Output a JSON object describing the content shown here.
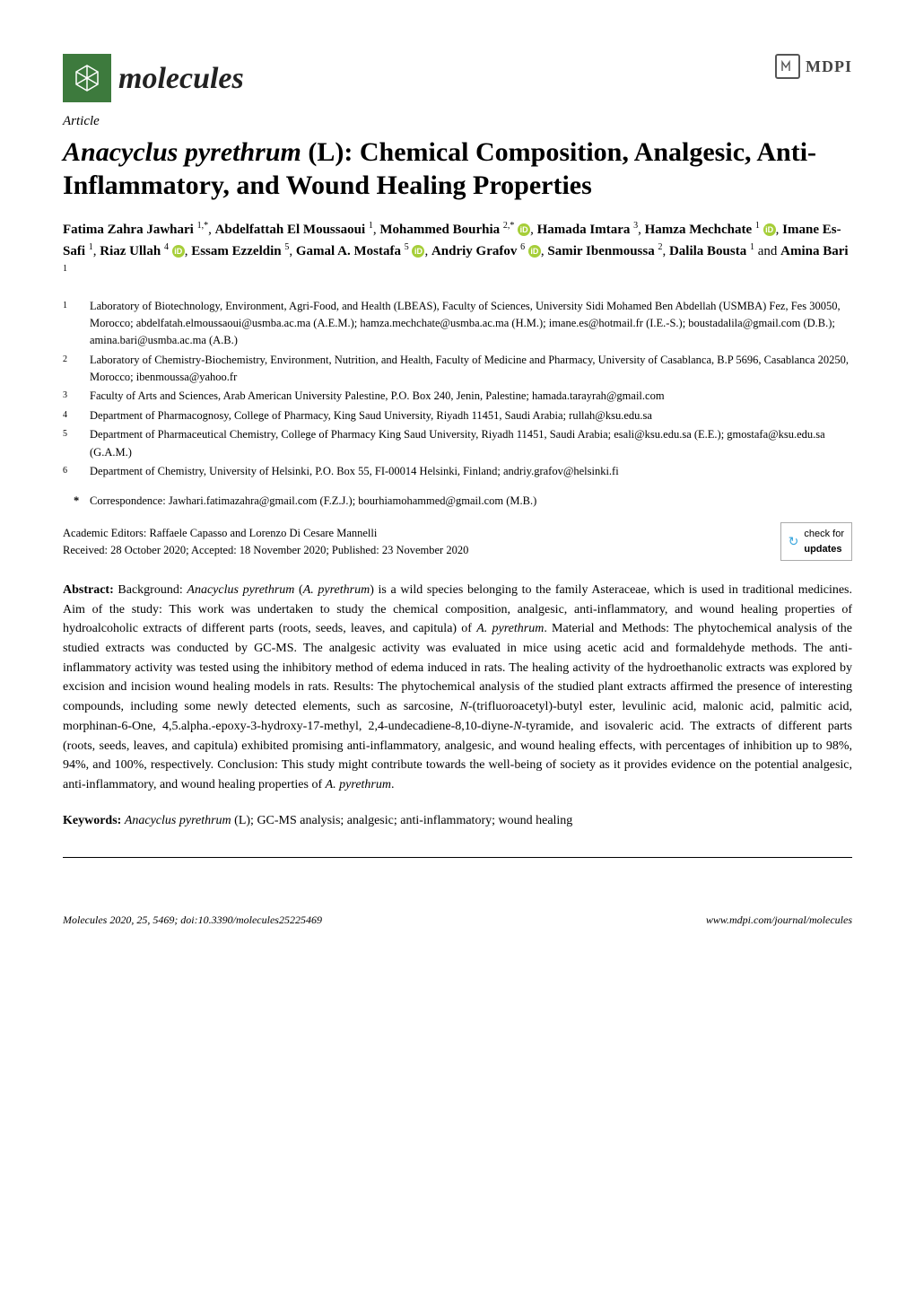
{
  "journal": {
    "name": "molecules",
    "publisher": "MDPI"
  },
  "article_type": "Article",
  "title": {
    "species": "Anacyclus pyrethrum",
    "suffix": " (L): Chemical Composition, Analgesic, Anti-Inflammatory, and Wound Healing Properties"
  },
  "authors_line": "Fatima Zahra Jawhari 1,*, Abdelfattah El Moussaoui 1, Mohammed Bourhia 2,* , Hamada Imtara 3, Hamza Mechchate 1 , Imane Es-Safi 1, Riaz Ullah 4 , Essam Ezzeldin 5, Gamal A. Mostafa 5 , Andriy Grafov 6 , Samir Ibenmoussa 2, Dalila Bousta 1 and Amina Bari 1",
  "authors": [
    {
      "name": "Fatima Zahra Jawhari",
      "sup": "1,*",
      "orcid": false
    },
    {
      "name": "Abdelfattah El Moussaoui",
      "sup": "1",
      "orcid": false
    },
    {
      "name": "Mohammed Bourhia",
      "sup": "2,*",
      "orcid": true
    },
    {
      "name": "Hamada Imtara",
      "sup": "3",
      "orcid": false
    },
    {
      "name": "Hamza Mechchate",
      "sup": "1",
      "orcid": true
    },
    {
      "name": "Imane Es-Safi",
      "sup": "1",
      "orcid": false
    },
    {
      "name": "Riaz Ullah",
      "sup": "4",
      "orcid": true
    },
    {
      "name": "Essam Ezzeldin",
      "sup": "5",
      "orcid": false
    },
    {
      "name": "Gamal A. Mostafa",
      "sup": "5",
      "orcid": true
    },
    {
      "name": "Andriy Grafov",
      "sup": "6",
      "orcid": true
    },
    {
      "name": "Samir Ibenmoussa",
      "sup": "2",
      "orcid": false
    },
    {
      "name": "Dalila Bousta",
      "sup": "1",
      "orcid": false
    },
    {
      "name": "Amina Bari",
      "sup": "1",
      "orcid": false
    }
  ],
  "affiliations": [
    {
      "num": "1",
      "text": "Laboratory of Biotechnology, Environment, Agri-Food, and Health (LBEAS), Faculty of Sciences, University Sidi Mohamed Ben Abdellah (USMBA) Fez, Fes 30050, Morocco; abdelfatah.elmoussaoui@usmba.ac.ma (A.E.M.); hamza.mechchate@usmba.ac.ma (H.M.); imane.es@hotmail.fr (I.E.-S.); boustadalila@gmail.com (D.B.); amina.bari@usmba.ac.ma (A.B.)"
    },
    {
      "num": "2",
      "text": "Laboratory of Chemistry-Biochemistry, Environment, Nutrition, and Health, Faculty of Medicine and Pharmacy, University of Casablanca, B.P 5696, Casablanca 20250, Morocco; ibenmoussa@yahoo.fr"
    },
    {
      "num": "3",
      "text": "Faculty of Arts and Sciences, Arab American University Palestine, P.O. Box 240, Jenin, Palestine; hamada.tarayrah@gmail.com"
    },
    {
      "num": "4",
      "text": "Department of Pharmacognosy, College of Pharmacy, King Saud University, Riyadh 11451, Saudi Arabia; rullah@ksu.edu.sa"
    },
    {
      "num": "5",
      "text": "Department of Pharmaceutical Chemistry, College of Pharmacy King Saud University, Riyadh 11451, Saudi Arabia; esali@ksu.edu.sa (E.E.); gmostafa@ksu.edu.sa (G.A.M.)"
    },
    {
      "num": "6",
      "text": "Department of Chemistry, University of Helsinki, P.O. Box 55, FI-00014 Helsinki, Finland; andriy.grafov@helsinki.fi"
    }
  ],
  "correspondence": "Correspondence: Jawhari.fatimazahra@gmail.com (F.Z.J.); bourhiamohammed@gmail.com (M.B.)",
  "editors": "Academic Editors: Raffaele Capasso and Lorenzo Di Cesare Mannelli",
  "dates": "Received: 28 October 2020; Accepted: 18 November 2020; Published: 23 November 2020",
  "updates_badge": "check for updates",
  "abstract": {
    "label": "Abstract:",
    "text": " Background: Anacyclus pyrethrum (A. pyrethrum) is a wild species belonging to the family Asteraceae, which is used in traditional medicines. Aim of the study: This work was undertaken to study the chemical composition, analgesic, anti-inflammatory, and wound healing properties of hydroalcoholic extracts of different parts (roots, seeds, leaves, and capitula) of A. pyrethrum. Material and Methods: The phytochemical analysis of the studied extracts was conducted by GC-MS. The analgesic activity was evaluated in mice using acetic acid and formaldehyde methods. The anti-inflammatory activity was tested using the inhibitory method of edema induced in rats. The healing activity of the hydroethanolic extracts was explored by excision and incision wound healing models in rats. Results: The phytochemical analysis of the studied plant extracts affirmed the presence of interesting compounds, including some newly detected elements, such as sarcosine, N-(trifluoroacetyl)-butyl ester, levulinic acid, malonic acid, palmitic acid, morphinan-6-One, 4,5.alpha.-epoxy-3-hydroxy-17-methyl, 2,4-undecadiene-8,10-diyne-N-tyramide, and isovaleric acid. The extracts of different parts (roots, seeds, leaves, and capitula) exhibited promising anti-inflammatory, analgesic, and wound healing effects, with percentages of inhibition up to 98%, 94%, and 100%, respectively. Conclusion: This study might contribute towards the well-being of society as it provides evidence on the potential analgesic, anti-inflammatory, and wound healing properties of A. pyrethrum."
  },
  "keywords": {
    "label": "Keywords:",
    "text": " Anacyclus pyrethrum (L); GC-MS analysis; analgesic; anti-inflammatory; wound healing"
  },
  "footer": {
    "left": "Molecules 2020, 25, 5469; doi:10.3390/molecules25225469",
    "right": "www.mdpi.com/journal/molecules"
  },
  "colors": {
    "logo_bg": "#3d7a3d",
    "orcid": "#a6ce39",
    "updates_icon": "#3aa6dd",
    "text": "#000000",
    "bg": "#ffffff"
  }
}
